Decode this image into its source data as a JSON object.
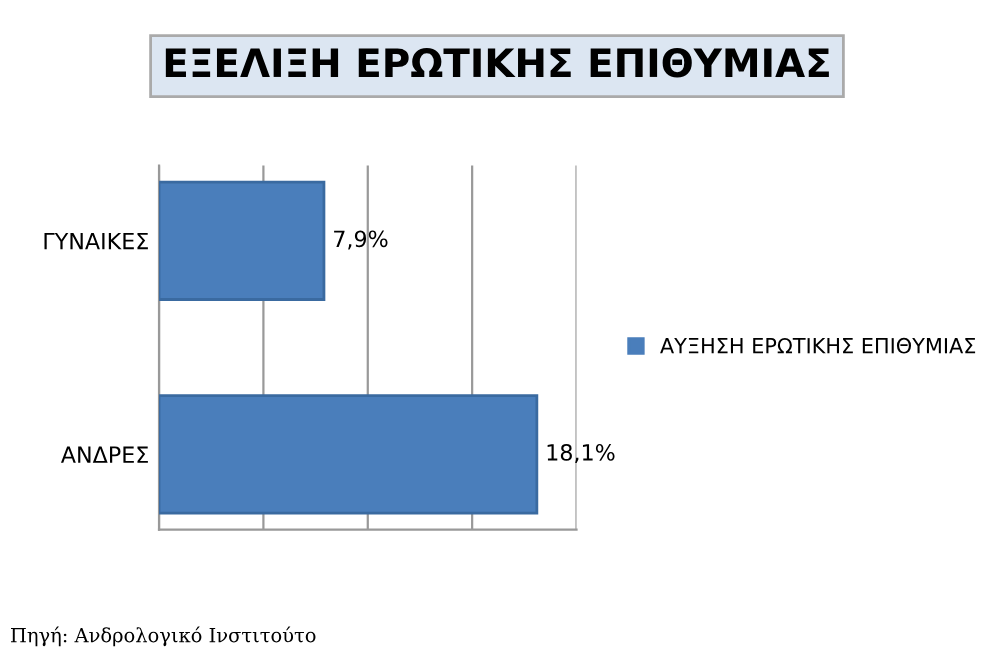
{
  "chart_data": {
    "type": "bar",
    "orientation": "horizontal",
    "title": "ΕΞΕΛΙΞΗ ΕΡΩΤΙΚΗΣ ΕΠΙΘΥΜΙΑΣ",
    "categories": [
      "ΓΥΝΑΙΚΕΣ",
      "ΑΝΔΡΕΣ"
    ],
    "series": [
      {
        "name": "ΑΥΞΗΣΗ ΕΡΩΤΙΚΗΣ ΕΠΙΘΥΜΙΑΣ",
        "color": "#4a7ebb",
        "values": [
          7.9,
          18.1
        ],
        "value_labels": [
          "7,9%",
          "18,1%"
        ]
      }
    ],
    "xlim": [
      0,
      20
    ],
    "xticks": [
      {
        "value": 0,
        "label": null
      },
      {
        "value": 5,
        "label": null
      },
      {
        "value": 10,
        "label": null
      },
      {
        "value": 15,
        "label": null
      },
      {
        "value": 20,
        "label": null
      }
    ],
    "tick_labels": "y",
    "grid": "x",
    "legend": "right",
    "annotations": [
      "Πηγή: Ανδρολογικό Ινστιτούτο"
    ]
  }
}
